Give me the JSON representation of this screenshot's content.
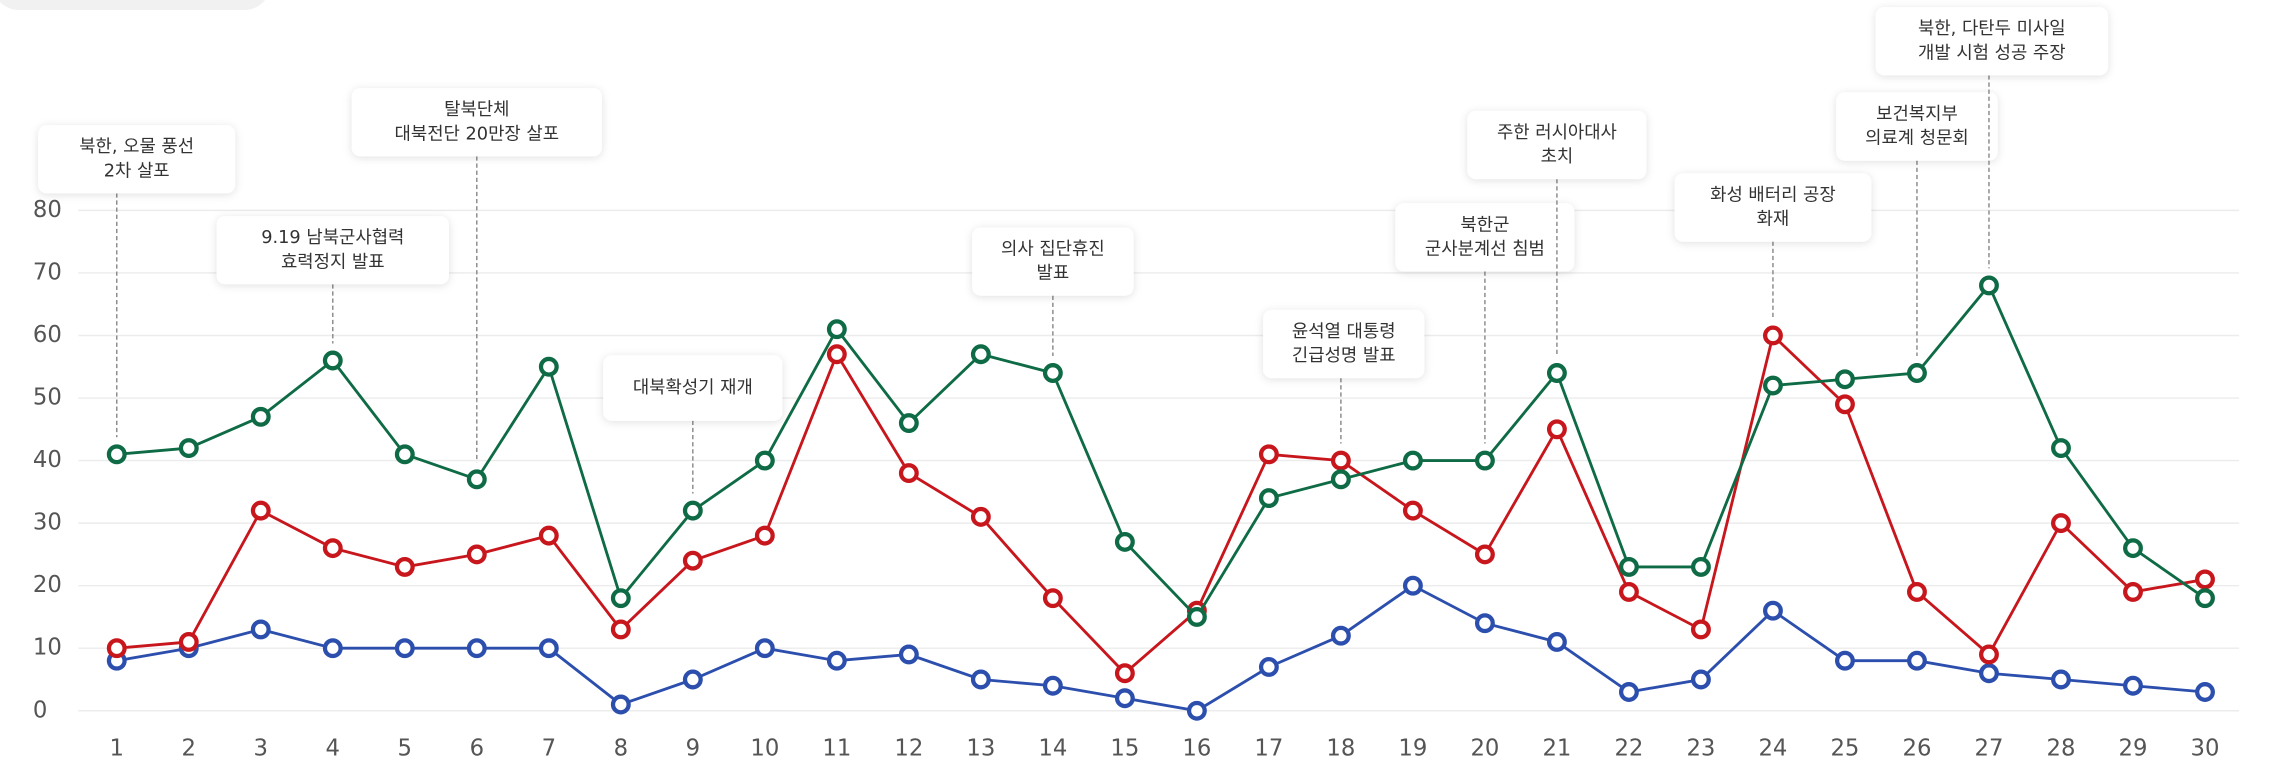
{
  "chart_data": {
    "type": "line",
    "categories": [
      "1",
      "2",
      "3",
      "4",
      "5",
      "6",
      "7",
      "8",
      "9",
      "10",
      "11",
      "12",
      "13",
      "14",
      "15",
      "16",
      "17",
      "18",
      "19",
      "20",
      "21",
      "22",
      "23",
      "24",
      "25",
      "26",
      "27",
      "28",
      "29",
      "30"
    ],
    "series": [
      {
        "color": "#2c4fae",
        "values": [
          8,
          10,
          13,
          10,
          10,
          10,
          10,
          1,
          5,
          10,
          8,
          9,
          5,
          4,
          2,
          0,
          7,
          12,
          20,
          14,
          11,
          3,
          5,
          16,
          8,
          8,
          6,
          5,
          4,
          3
        ]
      },
      {
        "color": "#c8161d",
        "values": [
          10,
          11,
          32,
          26,
          23,
          25,
          28,
          13,
          24,
          28,
          57,
          38,
          31,
          18,
          6,
          16,
          41,
          40,
          32,
          25,
          45,
          19,
          13,
          60,
          49,
          19,
          9,
          30,
          19,
          21
        ]
      },
      {
        "color": "#0e6b45",
        "values": [
          41,
          42,
          47,
          56,
          41,
          37,
          55,
          18,
          32,
          40,
          61,
          46,
          57,
          54,
          27,
          15,
          34,
          37,
          40,
          40,
          54,
          23,
          23,
          52,
          53,
          54,
          68,
          42,
          26,
          18
        ]
      }
    ],
    "annotations": [
      {
        "category": 0,
        "series": 2,
        "lines": [
          "북한, 오물 풍선",
          "2차 살포"
        ]
      },
      {
        "category": 3,
        "series": 2,
        "lines": [
          "9.19 남북군사협력",
          "효력정지 발표"
        ]
      },
      {
        "category": 5,
        "series": 2,
        "lines": [
          "탈북단체",
          "대북전단 20만장 살포"
        ]
      },
      {
        "category": 8,
        "series": 2,
        "lines": [
          "대북확성기 재개"
        ]
      },
      {
        "category": 13,
        "series": 2,
        "lines": [
          "의사 집단휴진",
          "발표"
        ]
      },
      {
        "category": 17,
        "series": 1,
        "lines": [
          "윤석열 대통령",
          "긴급성명 발표"
        ]
      },
      {
        "category": 19,
        "series": 2,
        "lines": [
          "북한군",
          "군사분계선 침범"
        ]
      },
      {
        "category": 20,
        "series": 2,
        "lines": [
          "주한 러시아대사",
          "초치"
        ]
      },
      {
        "category": 23,
        "series": 1,
        "lines": [
          "화성 배터리 공장",
          "화재"
        ]
      },
      {
        "category": 25,
        "series": 2,
        "lines": [
          "보건복지부",
          "의료계 청문회"
        ]
      },
      {
        "category": 26,
        "series": 2,
        "lines": [
          "북한, 다탄두 미사일",
          "개발 시험 성공 주장"
        ]
      }
    ],
    "ylim": [
      0,
      80
    ],
    "yticks": [
      0,
      10,
      20,
      30,
      40,
      50,
      60,
      70,
      80
    ],
    "grid": true
  }
}
